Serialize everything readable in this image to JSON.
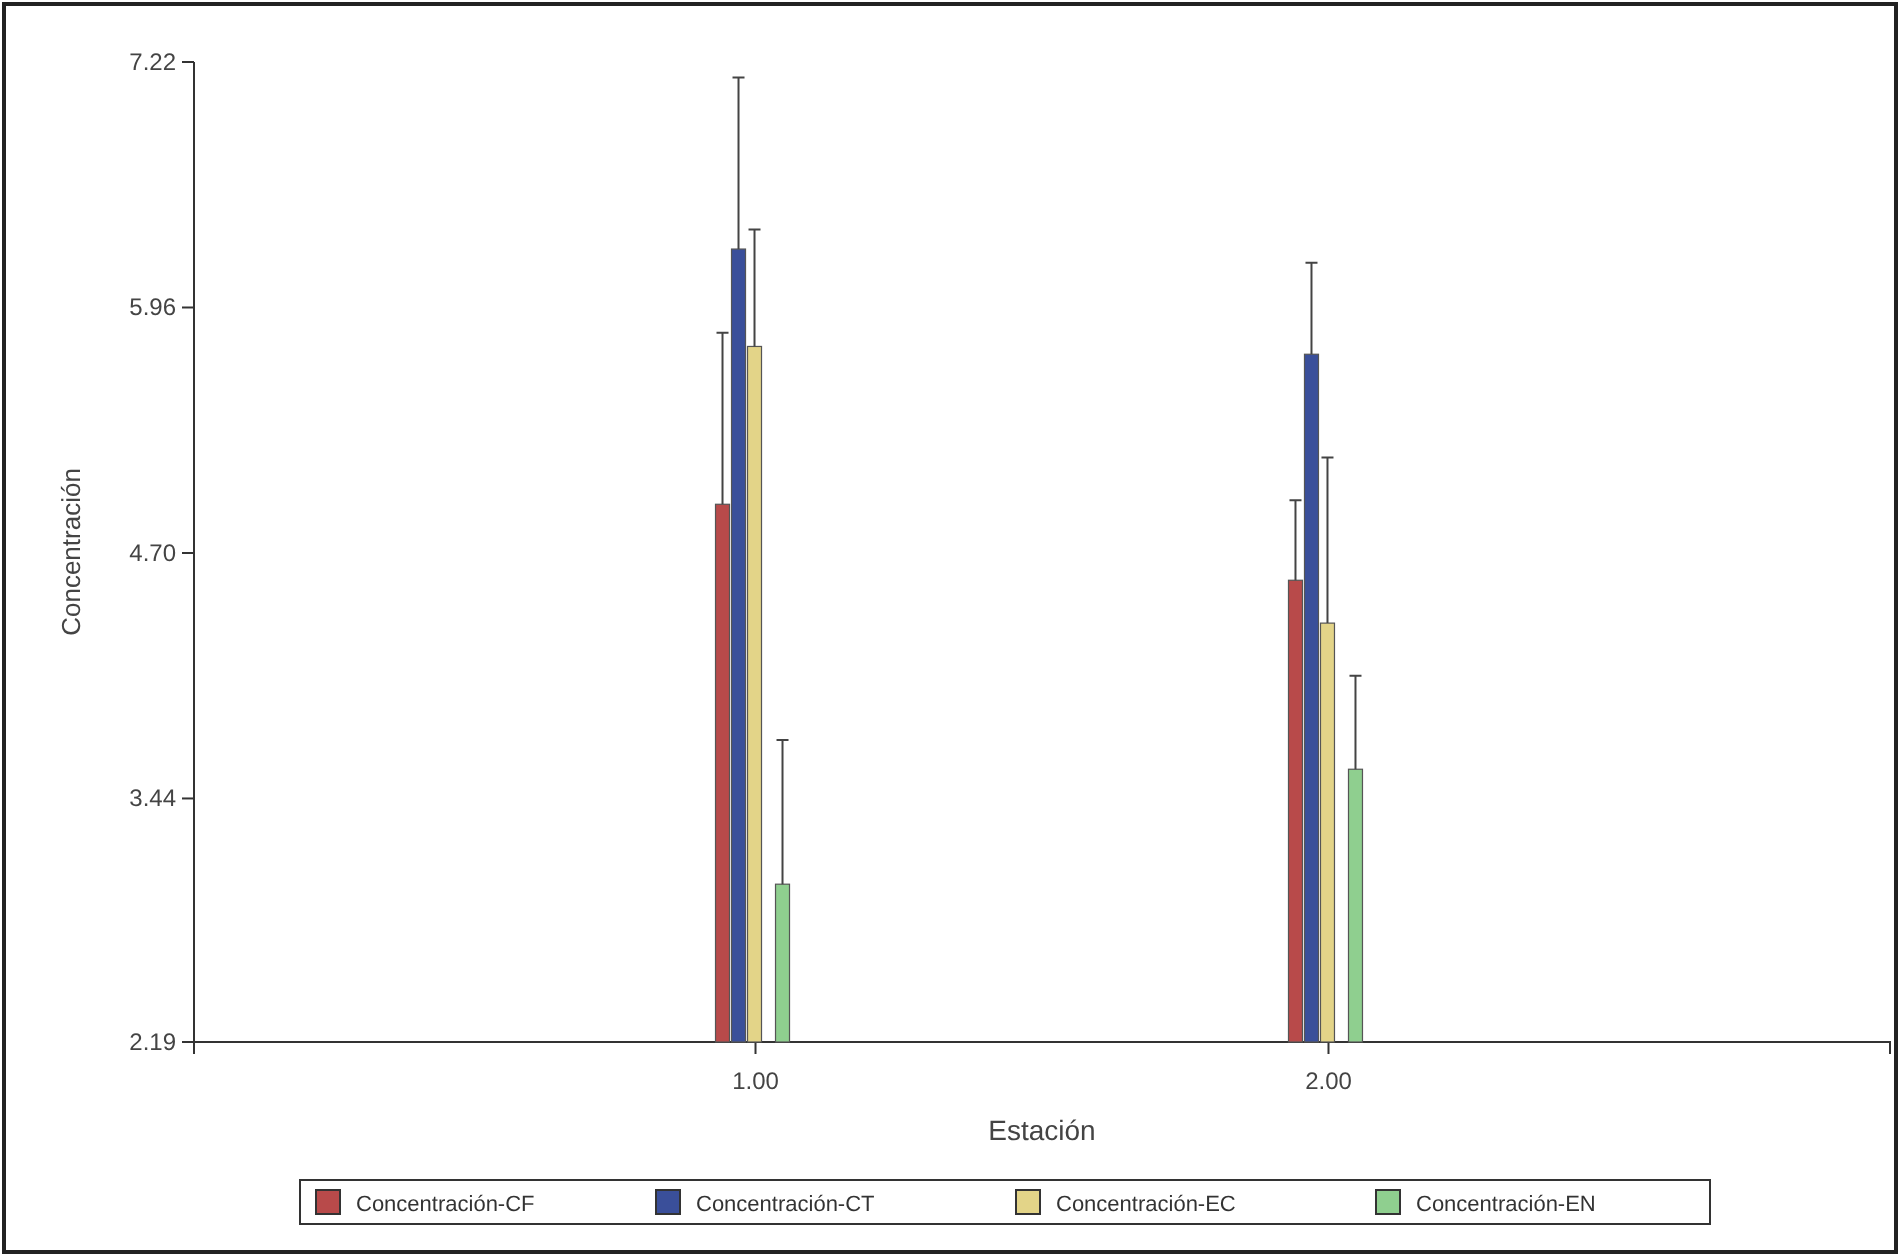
{
  "chart_data": {
    "type": "bar",
    "xlabel": "Estación",
    "ylabel": "Concentración",
    "categories": [
      "1.00",
      "2.00"
    ],
    "series": [
      {
        "name": "Concentración-CF",
        "color": "#b84a4a",
        "values": [
          4.95,
          4.56
        ],
        "errors": [
          [
            4.95,
            5.83
          ],
          [
            4.56,
            4.97
          ]
        ]
      },
      {
        "name": "Concentración-CT",
        "color": "#3a4f9a",
        "values": [
          6.26,
          5.72
        ],
        "errors": [
          [
            6.26,
            7.14
          ],
          [
            5.72,
            6.19
          ]
        ]
      },
      {
        "name": "Concentración-EC",
        "color": "#e3d488",
        "values": [
          5.76,
          4.34
        ],
        "errors": [
          [
            5.76,
            6.36
          ],
          [
            4.34,
            5.19
          ]
        ]
      },
      {
        "name": "Concentración-EN",
        "color": "#8fcf8f",
        "values": [
          3.0,
          3.59
        ],
        "errors": [
          [
            3.0,
            3.74
          ],
          [
            3.59,
            4.07
          ]
        ]
      }
    ],
    "ylim": [
      2.19,
      7.22
    ],
    "yticks": [
      2.19,
      3.44,
      {
        "value": 4.7,
        "label": "4.70"
      },
      5.96,
      7.22
    ],
    "grid": false,
    "legend": "bottom"
  }
}
